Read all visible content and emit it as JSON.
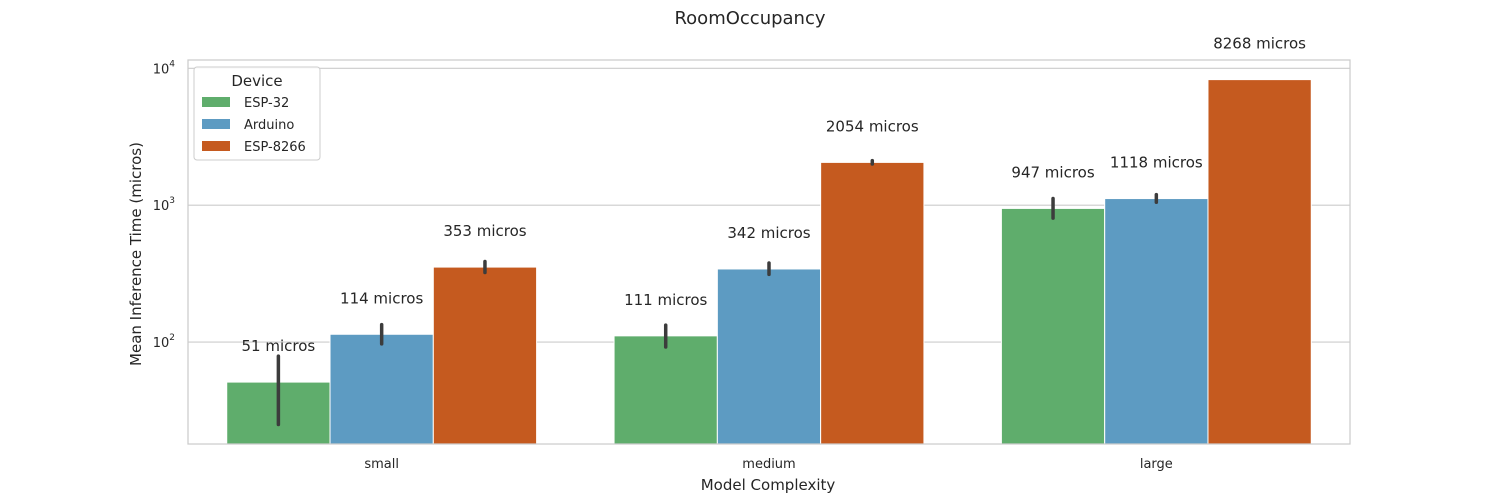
{
  "chart_data": {
    "type": "bar",
    "title": "RoomOccupancy",
    "xlabel": "Model Complexity",
    "ylabel": "Mean Inference Time (micros)",
    "yscale": "log",
    "ylim": [
      18,
      11500
    ],
    "categories": [
      "small",
      "medium",
      "large"
    ],
    "y_ticks": [
      {
        "value": 100,
        "label": "10",
        "exp": "2"
      },
      {
        "value": 1000,
        "label": "10",
        "exp": "3"
      },
      {
        "value": 10000,
        "label": "10",
        "exp": "4"
      }
    ],
    "legend": {
      "title": "Device",
      "position": "upper-left"
    },
    "grid": "y",
    "series": [
      {
        "name": "ESP-32",
        "color": "#5fad6c",
        "values": [
          51,
          111,
          947
        ],
        "err_low": [
          25,
          92,
          805
        ],
        "err_high": [
          79,
          133,
          1120
        ],
        "labels": [
          "51 micros",
          "111 micros",
          "947 micros"
        ]
      },
      {
        "name": "Arduino",
        "color": "#5d9bc2",
        "values": [
          114,
          342,
          1118
        ],
        "err_low": [
          97,
          312,
          1050
        ],
        "err_high": [
          134,
          378,
          1195
        ],
        "labels": [
          "114 micros",
          "342 micros",
          "1118 micros"
        ]
      },
      {
        "name": "ESP-8266",
        "color": "#c55a1f",
        "values": [
          353,
          2054,
          8268
        ],
        "err_low": [
          322,
          2000,
          8268
        ],
        "err_high": [
          388,
          2115,
          8268
        ],
        "labels": [
          "353 micros",
          "2054 micros",
          "8268 micros"
        ]
      }
    ]
  }
}
